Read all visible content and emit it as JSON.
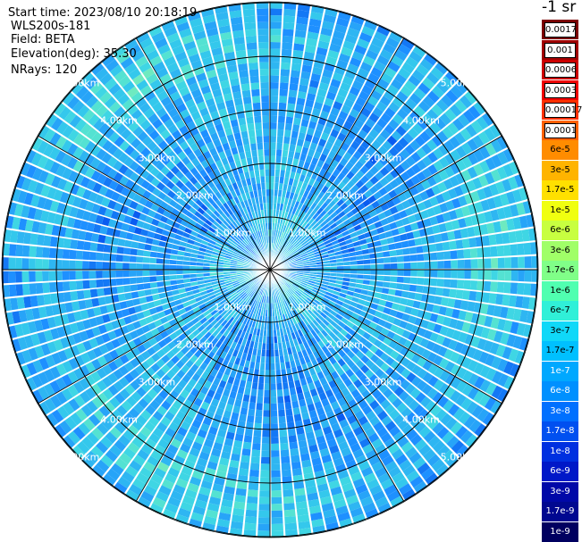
{
  "info": {
    "start_time": "Start time: 2023/08/10 20:18:19",
    "instrument": "WLS200s-181",
    "field": "Field: BETA",
    "elevation": "Elevation(deg): 35.30",
    "nrays": "NRays: 120"
  },
  "unit_label": "-1 sr",
  "range_rings": {
    "labels": [
      "1.00km",
      "2.00km",
      "3.00km",
      "4.00km",
      "5.00km"
    ]
  },
  "colorbar": {
    "entries": [
      {
        "label": "0.0017",
        "color": "#7a0000",
        "boxed": true
      },
      {
        "label": "0.001",
        "color": "#a00000",
        "boxed": true
      },
      {
        "label": "0.0006",
        "color": "#cc0000",
        "boxed": true
      },
      {
        "label": "0.0003",
        "color": "#ee0000",
        "boxed": true
      },
      {
        "label": "0.00017",
        "color": "#ff3000",
        "boxed": true
      },
      {
        "label": "0.0001",
        "color": "#ff6000",
        "boxed": true
      },
      {
        "label": "6e-5",
        "color": "#ff8c00",
        "boxed": false
      },
      {
        "label": "3e-5",
        "color": "#ffb400",
        "boxed": false
      },
      {
        "label": "1.7e-5",
        "color": "#ffe000",
        "boxed": false
      },
      {
        "label": "1e-5",
        "color": "#f0ff10",
        "boxed": false
      },
      {
        "label": "6e-6",
        "color": "#c8ff40",
        "boxed": false
      },
      {
        "label": "3e-6",
        "color": "#a0ff68",
        "boxed": false
      },
      {
        "label": "1.7e-6",
        "color": "#80ff88",
        "boxed": false
      },
      {
        "label": "1e-6",
        "color": "#50ffb0",
        "boxed": false
      },
      {
        "label": "6e-7",
        "color": "#30f0d8",
        "boxed": false
      },
      {
        "label": "3e-7",
        "color": "#10d8f8",
        "boxed": false
      },
      {
        "label": "1.7e-7",
        "color": "#00c0ff",
        "boxed": false
      },
      {
        "label": "1e-7",
        "color": "#00a8ff",
        "boxed": false
      },
      {
        "label": "6e-8",
        "color": "#0090ff",
        "boxed": false
      },
      {
        "label": "3e-8",
        "color": "#0070ff",
        "boxed": false
      },
      {
        "label": "1.7e-8",
        "color": "#0050f0",
        "boxed": false
      },
      {
        "label": "1e-8",
        "color": "#0030e0",
        "boxed": false
      },
      {
        "label": "6e-9",
        "color": "#0018c8",
        "boxed": false
      },
      {
        "label": "3e-9",
        "color": "#0008a8",
        "boxed": false
      },
      {
        "label": "1.7e-9",
        "color": "#000890",
        "boxed": false
      },
      {
        "label": "1e-9",
        "color": "#000060",
        "boxed": false
      }
    ]
  },
  "field_palette": [
    "#0a5cf0",
    "#1478f5",
    "#1e90ff",
    "#27a4f8",
    "#2eb6f2",
    "#34c8ec",
    "#3fd6e4",
    "#54e2d2",
    "#6eeac0"
  ]
}
